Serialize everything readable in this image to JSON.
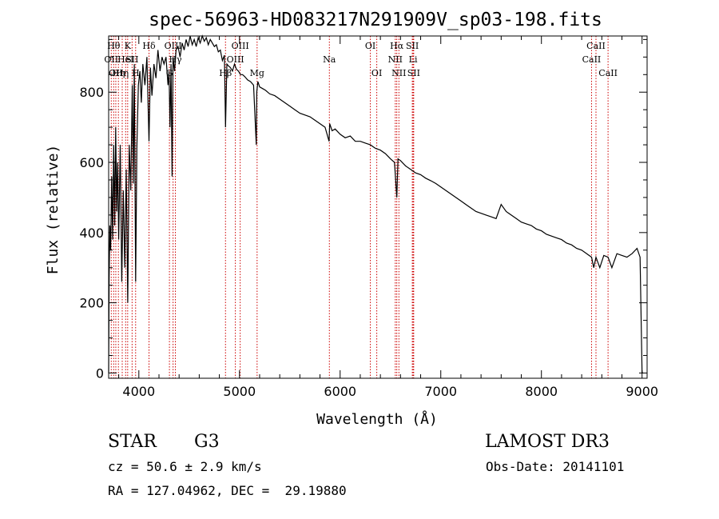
{
  "chart_data": {
    "type": "line",
    "title": "spec-56963-HD083217N291909V_sp03-198.fits",
    "xlabel": "Wavelength (Å)",
    "ylabel": "Flux (relative)",
    "xlim": [
      3700,
      9050
    ],
    "ylim": [
      -15,
      960
    ],
    "xticks": [
      4000,
      5000,
      6000,
      7000,
      8000,
      9000
    ],
    "xtick_labels": [
      "4000",
      "5000",
      "6000",
      "7000",
      "8000",
      "9000"
    ],
    "yticks": [
      0,
      200,
      400,
      600,
      800
    ],
    "ytick_labels": [
      "0",
      "200",
      "400",
      "600",
      "800"
    ],
    "grid": false,
    "series": [
      {
        "name": "spectrum",
        "x": [
          3700,
          3705,
          3712,
          3720,
          3730,
          3740,
          3750,
          3760,
          3770,
          3780,
          3790,
          3800,
          3815,
          3830,
          3845,
          3860,
          3875,
          3890,
          3905,
          3920,
          3935,
          3945,
          3955,
          3968,
          3980,
          3995,
          4010,
          4025,
          4040,
          4060,
          4080,
          4101,
          4115,
          4130,
          4150,
          4170,
          4190,
          4210,
          4230,
          4250,
          4270,
          4290,
          4300,
          4310,
          4320,
          4330,
          4340,
          4355,
          4370,
          4390,
          4410,
          4430,
          4450,
          4470,
          4490,
          4510,
          4530,
          4550,
          4570,
          4590,
          4610,
          4630,
          4650,
          4670,
          4690,
          4710,
          4730,
          4750,
          4770,
          4790,
          4810,
          4830,
          4850,
          4861,
          4875,
          4890,
          4910,
          4930,
          4950,
          4970,
          4990,
          5010,
          5030,
          5050,
          5080,
          5110,
          5140,
          5167,
          5172,
          5183,
          5200,
          5230,
          5260,
          5300,
          5350,
          5400,
          5450,
          5500,
          5550,
          5600,
          5650,
          5700,
          5750,
          5800,
          5850,
          5890,
          5896,
          5920,
          5950,
          6000,
          6050,
          6100,
          6150,
          6200,
          6250,
          6300,
          6350,
          6400,
          6450,
          6500,
          6540,
          6563,
          6575,
          6600,
          6650,
          6700,
          6750,
          6800,
          6850,
          6900,
          6950,
          7000,
          7050,
          7100,
          7150,
          7200,
          7250,
          7300,
          7350,
          7400,
          7450,
          7500,
          7550,
          7600,
          7650,
          7700,
          7750,
          7800,
          7850,
          7900,
          7950,
          8000,
          8050,
          8100,
          8150,
          8200,
          8250,
          8300,
          8350,
          8400,
          8450,
          8498,
          8520,
          8542,
          8580,
          8620,
          8662,
          8700,
          8750,
          8800,
          8850,
          8900,
          8950,
          8980,
          9000,
          9010
        ],
        "y": [
          0,
          270,
          420,
          350,
          560,
          380,
          650,
          420,
          700,
          460,
          600,
          380,
          650,
          260,
          520,
          300,
          580,
          200,
          650,
          520,
          820,
          540,
          880,
          260,
          640,
          820,
          860,
          770,
          880,
          820,
          900,
          660,
          870,
          790,
          880,
          840,
          920,
          860,
          900,
          880,
          900,
          820,
          860,
          700,
          880,
          560,
          900,
          860,
          920,
          930,
          900,
          940,
          920,
          950,
          930,
          960,
          935,
          950,
          930,
          955,
          940,
          960,
          945,
          955,
          935,
          950,
          940,
          930,
          935,
          915,
          920,
          890,
          905,
          700,
          880,
          875,
          870,
          860,
          880,
          865,
          860,
          850,
          850,
          845,
          835,
          830,
          820,
          650,
          800,
          830,
          815,
          810,
          805,
          795,
          790,
          780,
          770,
          760,
          750,
          740,
          735,
          730,
          720,
          710,
          700,
          660,
          710,
          690,
          695,
          680,
          670,
          675,
          660,
          660,
          655,
          650,
          640,
          635,
          625,
          610,
          600,
          500,
          610,
          605,
          590,
          580,
          570,
          565,
          555,
          548,
          540,
          530,
          520,
          510,
          500,
          490,
          480,
          470,
          460,
          455,
          450,
          445,
          440,
          480,
          460,
          450,
          440,
          430,
          425,
          420,
          410,
          405,
          395,
          390,
          385,
          380,
          370,
          365,
          355,
          350,
          340,
          330,
          300,
          330,
          300,
          335,
          330,
          300,
          340,
          335,
          330,
          340,
          355,
          330,
          0,
          0
        ]
      }
    ],
    "lines": [
      {
        "wl": 3726,
        "label": "OII",
        "row": 2
      },
      {
        "wl": 3750,
        "label": "Hθ",
        "row": 1
      },
      {
        "wl": 3771,
        "label": "OII",
        "row": 3
      },
      {
        "wl": 3797,
        "label": "Hη",
        "row": 3
      },
      {
        "wl": 3835,
        "label": "Hη",
        "row": 3
      },
      {
        "wl": 3869,
        "label": "HeI",
        "row": 2
      },
      {
        "wl": 3889,
        "label": "K",
        "row": 1
      },
      {
        "wl": 3933,
        "label": "SII",
        "row": 2
      },
      {
        "wl": 3968,
        "label": "H",
        "row": 3
      },
      {
        "wl": 4101,
        "label": "Hδ",
        "row": 1
      },
      {
        "wl": 4304,
        "label": "G",
        "row": 3
      },
      {
        "wl": 4340,
        "label": "OIII",
        "row": 1
      },
      {
        "wl": 4363,
        "label": "Hγ",
        "row": 2
      },
      {
        "wl": 4861,
        "label": "Hβ",
        "row": 3
      },
      {
        "wl": 4959,
        "label": "OIII",
        "row": 2
      },
      {
        "wl": 5007,
        "label": "OIII",
        "row": 1
      },
      {
        "wl": 5175,
        "label": "Mg",
        "row": 3
      },
      {
        "wl": 5893,
        "label": "Na",
        "row": 2
      },
      {
        "wl": 6300,
        "label": "OI",
        "row": 1
      },
      {
        "wl": 6364,
        "label": "OI",
        "row": 3
      },
      {
        "wl": 6548,
        "label": "NII",
        "row": 2
      },
      {
        "wl": 6563,
        "label": "Hα",
        "row": 1
      },
      {
        "wl": 6584,
        "label": "NII",
        "row": 3
      },
      {
        "wl": 6717,
        "label": "SII",
        "row": 1
      },
      {
        "wl": 6725,
        "label": "Li",
        "row": 2
      },
      {
        "wl": 6731,
        "label": "SII",
        "row": 3
      },
      {
        "wl": 8498,
        "label": "CaII",
        "row": 2
      },
      {
        "wl": 8542,
        "label": "CaII",
        "row": 1
      },
      {
        "wl": 8662,
        "label": "CaII",
        "row": 3
      }
    ]
  },
  "info": {
    "class": "STAR",
    "subclass": "G3",
    "survey": "LAMOST DR3",
    "cz": "cz = 50.6 ± 2.9 km/s",
    "obs_date": "Obs-Date: 20141101",
    "radec": "RA = 127.04962, DEC =  29.19880"
  },
  "colors": {
    "spectrum": "#000000",
    "line_marker": "#cc0000",
    "axes": "#000000"
  }
}
